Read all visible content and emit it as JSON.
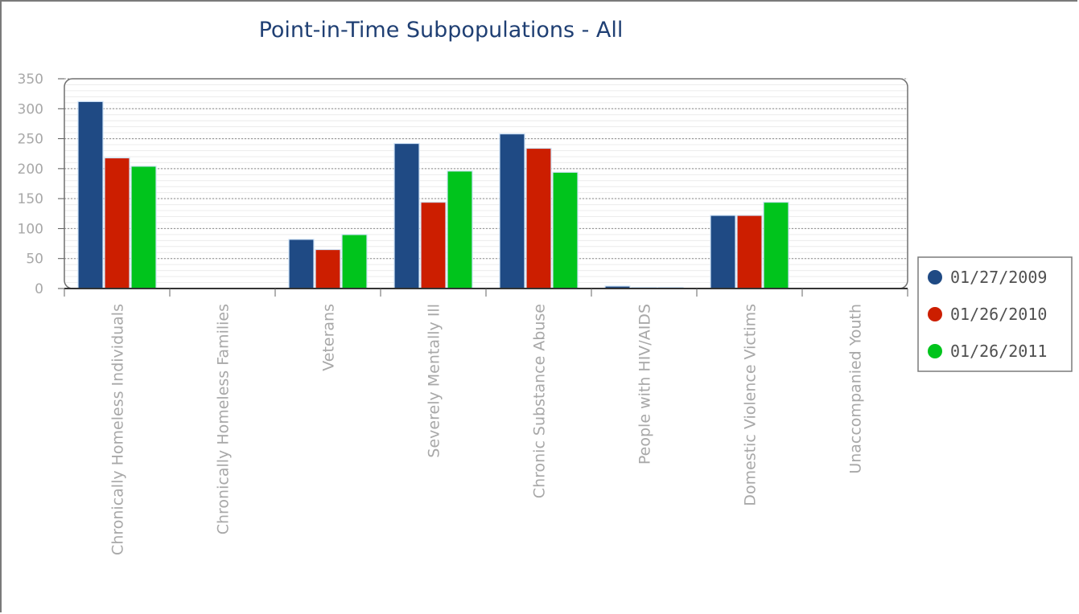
{
  "chart_data": {
    "type": "bar",
    "title": "Point-in-Time Subpopulations - All",
    "xlabel": "",
    "ylabel": "",
    "ylim": [
      0,
      350
    ],
    "yticks": [
      0,
      50,
      100,
      150,
      200,
      250,
      300,
      350
    ],
    "grid": true,
    "legend_position": "right",
    "categories": [
      "Chronically Homeless Individuals",
      "Chronically Homeless Families",
      "Veterans",
      "Severely Mentally Ill",
      "Chronic Substance Abuse",
      "People with HIV/AIDS",
      "Domestic Violence Victims",
      "Unaccompanied Youth"
    ],
    "series": [
      {
        "name": "01/27/2009",
        "color": "#1f4a84",
        "values": [
          312,
          0,
          82,
          242,
          258,
          4,
          122,
          0
        ]
      },
      {
        "name": "01/26/2010",
        "color": "#cc1e00",
        "values": [
          218,
          0,
          65,
          144,
          234,
          2,
          122,
          0
        ]
      },
      {
        "name": "01/26/2011",
        "color": "#00c41c",
        "values": [
          204,
          0,
          90,
          196,
          194,
          2,
          144,
          0
        ]
      }
    ]
  }
}
